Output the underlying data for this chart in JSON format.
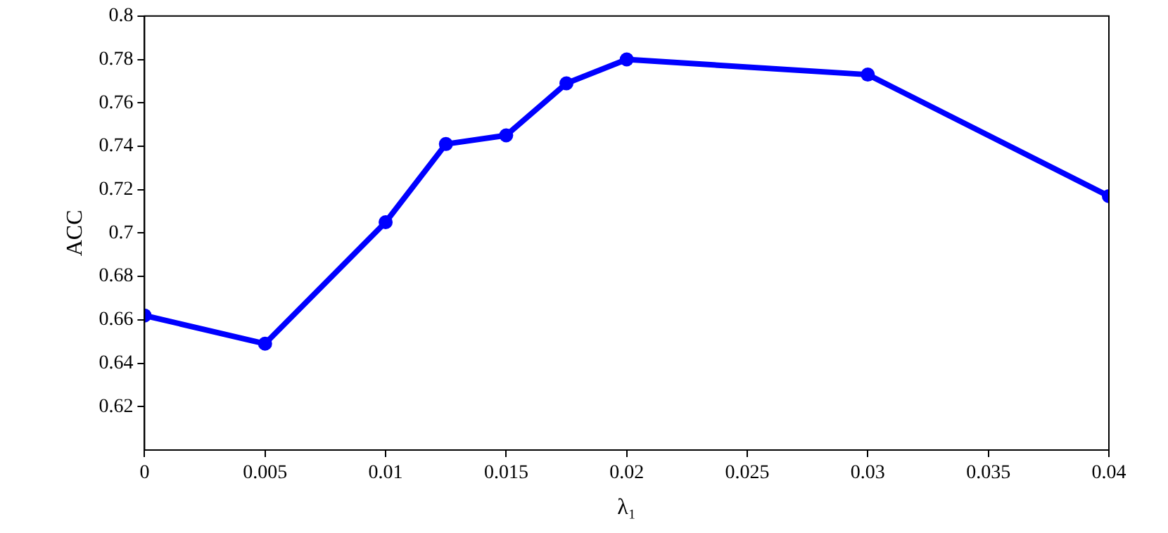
{
  "chart_data": {
    "type": "line",
    "xlabel": "λ₁",
    "ylabel": "ACC",
    "x": [
      0,
      0.005,
      0.01,
      0.0125,
      0.015,
      0.0175,
      0.02,
      0.03,
      0.04
    ],
    "series": [
      {
        "color": "#0000ff",
        "values": [
          0.662,
          0.649,
          0.705,
          0.741,
          0.745,
          0.769,
          0.78,
          0.773,
          0.717
        ]
      }
    ],
    "xlim": [
      0,
      0.04
    ],
    "xticks": [
      0,
      0.005,
      0.01,
      0.015,
      0.02,
      0.025,
      0.03,
      0.035,
      0.04
    ],
    "ylim": [
      0.6,
      0.8
    ],
    "yticks": [
      0.62,
      0.64,
      0.66,
      0.68,
      0.7,
      0.72,
      0.74,
      0.76,
      0.78,
      0.8
    ],
    "grid": false,
    "legend": false,
    "marker": "circle",
    "line_style": "solid"
  }
}
